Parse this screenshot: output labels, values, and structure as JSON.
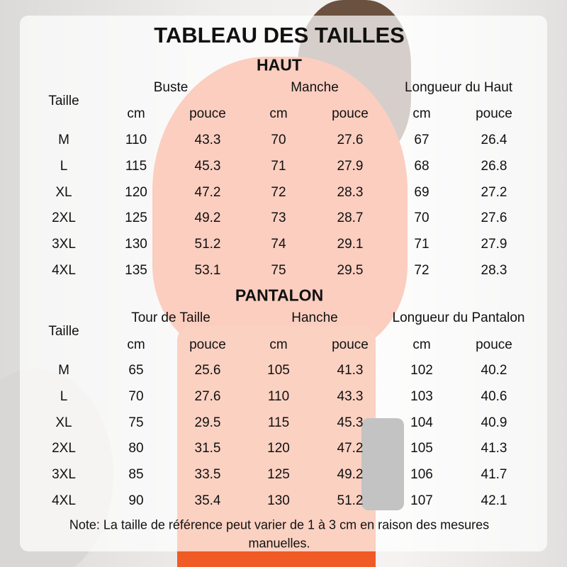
{
  "title": "TABLEAU DES TAILLES",
  "haut": {
    "section": "HAUT",
    "size_header": "Taille",
    "groups": [
      "Buste",
      "Manche",
      "Longueur du Haut"
    ],
    "units": [
      "cm",
      "pouce",
      "cm",
      "pouce",
      "cm",
      "pouce"
    ],
    "rows": [
      [
        "M",
        "110",
        "43.3",
        "70",
        "27.6",
        "67",
        "26.4"
      ],
      [
        "L",
        "115",
        "45.3",
        "71",
        "27.9",
        "68",
        "26.8"
      ],
      [
        "XL",
        "120",
        "47.2",
        "72",
        "28.3",
        "69",
        "27.2"
      ],
      [
        "2XL",
        "125",
        "49.2",
        "73",
        "28.7",
        "70",
        "27.6"
      ],
      [
        "3XL",
        "130",
        "51.2",
        "74",
        "29.1",
        "71",
        "27.9"
      ],
      [
        "4XL",
        "135",
        "53.1",
        "75",
        "29.5",
        "72",
        "28.3"
      ]
    ]
  },
  "pantalon": {
    "section": "PANTALON",
    "size_header": "Taille",
    "groups": [
      "Tour de Taille",
      "Hanche",
      "Longueur du Pantalon"
    ],
    "units": [
      "cm",
      "pouce",
      "cm",
      "pouce",
      "cm",
      "pouce"
    ],
    "rows": [
      [
        "M",
        "65",
        "25.6",
        "105",
        "41.3",
        "102",
        "40.2"
      ],
      [
        "L",
        "70",
        "27.6",
        "110",
        "43.3",
        "103",
        "40.6"
      ],
      [
        "XL",
        "75",
        "29.5",
        "115",
        "45.3",
        "104",
        "40.9"
      ],
      [
        "2XL",
        "80",
        "31.5",
        "120",
        "47.2",
        "105",
        "41.3"
      ],
      [
        "3XL",
        "85",
        "33.5",
        "125",
        "49.2",
        "106",
        "41.7"
      ],
      [
        "4XL",
        "90",
        "35.4",
        "130",
        "51.2",
        "107",
        "42.1"
      ]
    ]
  },
  "note_line1": "Note: La taille de référence peut varier de 1 à 3 cm en raison des mesures",
  "note_line2": "manuelles.",
  "colors": {
    "garment": "#f0501e",
    "panel": "#ffffff"
  }
}
